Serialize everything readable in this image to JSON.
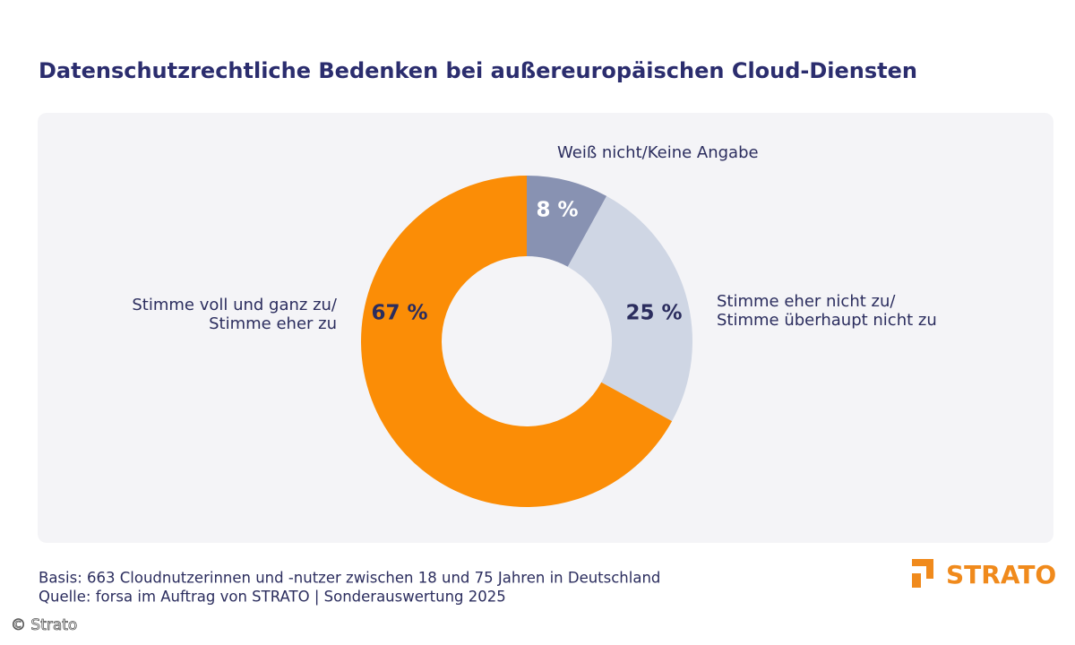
{
  "chart_data": {
    "type": "pie",
    "title": "Datenschutzrechtliche Bedenken bei außereuropäischen Cloud-Diensten",
    "categories": [
      "Weiß nicht/Keine Angabe",
      "Stimme eher nicht zu/\nStimme überhaupt nicht zu",
      "Stimme voll und ganz zu/\nStimme eher zu"
    ],
    "values": [
      8,
      25,
      67
    ],
    "value_labels": [
      "8 %",
      "25 %",
      "67 %"
    ],
    "colors": [
      "#8892b2",
      "#cfd6e4",
      "#fb8d06"
    ]
  },
  "footer": {
    "basis": "Basis: 663 Cloudnutzerinnen und -nutzer zwischen 18 und 75 Jahren in Deutschland",
    "source": "Quelle: forsa im Auftrag von STRATO | Sonderauswertung 2025"
  },
  "logo": "STRATO",
  "credit": "© Strato"
}
